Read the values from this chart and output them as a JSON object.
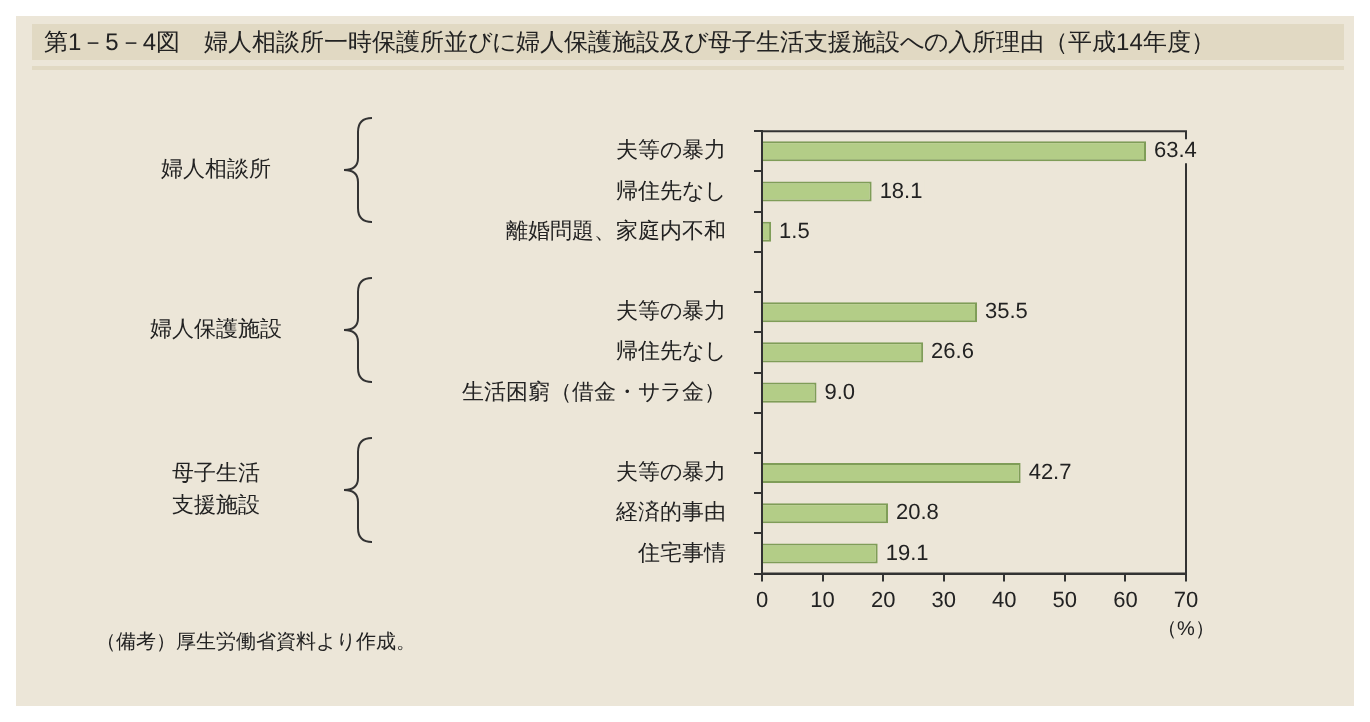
{
  "chart_data": {
    "type": "bar",
    "orientation": "horizontal",
    "title": "第1－5－4図　婦人相談所一時保護所並びに婦人保護施設及び母子生活支援施設への入所理由（平成14年度）",
    "categories": [
      "夫等の暴力",
      "帰住先なし",
      "離婚問題、家庭内不和",
      null,
      "夫等の暴力",
      "帰住先なし",
      "生活困窮（借金・サラ金）",
      null,
      "夫等の暴力",
      "経済的事由",
      "住宅事情"
    ],
    "values": [
      63.4,
      18.1,
      1.5,
      null,
      35.5,
      26.6,
      9.0,
      null,
      42.7,
      20.8,
      19.1
    ],
    "color": "#b3cd87",
    "value_labels": [
      "63.4",
      "18.1",
      "1.5",
      null,
      "35.5",
      "26.6",
      "9.0",
      null,
      "42.7",
      "20.8",
      "19.1"
    ],
    "xlim": [
      0,
      70
    ],
    "xticks": [
      0,
      10,
      20,
      30,
      40,
      50,
      60,
      70
    ],
    "xlabel": "（%）",
    "grid": false,
    "annotations": [
      "婦人相談所",
      "婦人保護施設",
      "母子生活支援施設",
      "（備考）厚生労働省資料より作成。"
    ]
  }
}
